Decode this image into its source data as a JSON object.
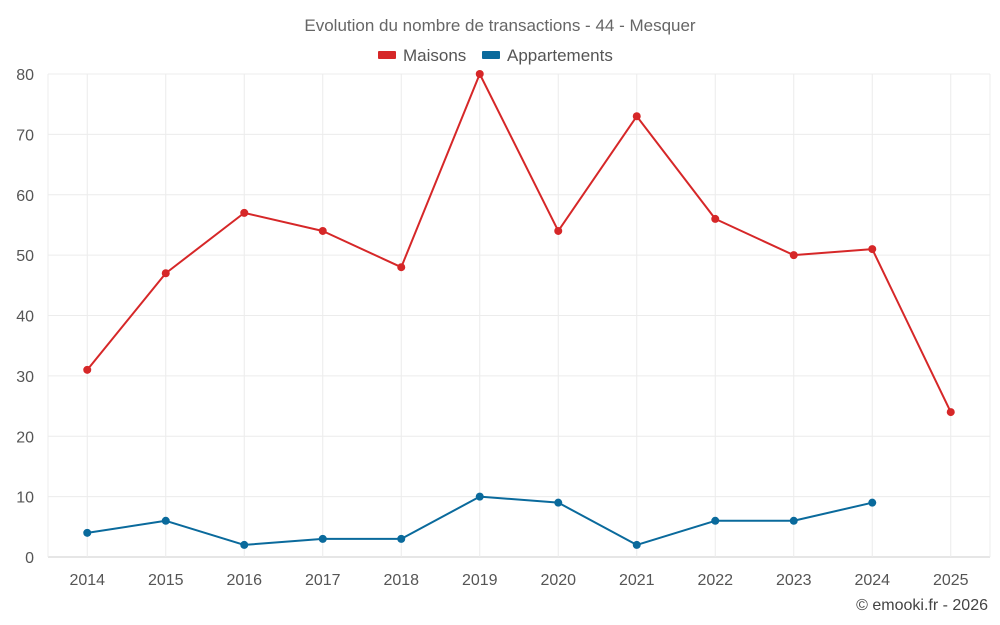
{
  "chart_data": {
    "type": "line",
    "title": "Evolution du nombre de transactions - 44 - Mesquer",
    "categories": [
      "2014",
      "2015",
      "2016",
      "2017",
      "2018",
      "2019",
      "2020",
      "2021",
      "2022",
      "2023",
      "2024",
      "2025"
    ],
    "ylim": [
      0,
      80
    ],
    "yticks": [
      0,
      10,
      20,
      30,
      40,
      50,
      60,
      70,
      80
    ],
    "grid": true,
    "legend_position": "top-center",
    "series": [
      {
        "name": "Maisons",
        "color": "#d62728",
        "values": [
          31,
          47,
          57,
          54,
          48,
          80,
          54,
          73,
          56,
          50,
          51,
          24
        ]
      },
      {
        "name": "Appartements",
        "color": "#0a6a9c",
        "values": [
          4,
          6,
          2,
          3,
          3,
          10,
          9,
          2,
          6,
          6,
          9,
          null
        ]
      }
    ],
    "credit": "© emooki.fr - 2026"
  }
}
